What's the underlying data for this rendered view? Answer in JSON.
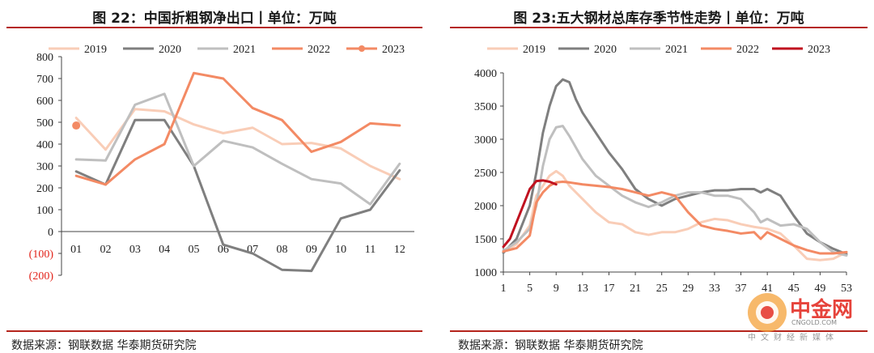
{
  "left": {
    "title": "图 22：中国折粗钢净出口丨单位：万吨",
    "source": "数据来源：钢联数据 华泰期货研究院"
  },
  "right": {
    "title": "图 23:五大钢材总库存季节性走势丨单位：万吨",
    "source": "数据来源：钢联数据 华泰期货研究院"
  },
  "watermark": {
    "cn": "中金网",
    "url": "CNGOLD.COM",
    "sub": "中文财经新媒体"
  },
  "chart_data": [
    {
      "type": "line",
      "title": "图 22：中国折粗钢净出口丨单位：万吨",
      "unit": "万吨",
      "categories": [
        "01",
        "02",
        "03",
        "04",
        "05",
        "06",
        "07",
        "08",
        "09",
        "10",
        "11",
        "12"
      ],
      "ylim": [
        -200,
        800
      ],
      "yticks": [
        -200,
        -100,
        0,
        100,
        200,
        300,
        400,
        500,
        600,
        700,
        800
      ],
      "ytick_labels": [
        "(200)",
        "(100)",
        "0",
        "100",
        "200",
        "300",
        "400",
        "500",
        "600",
        "700",
        "800"
      ],
      "legend_position": "top",
      "series": [
        {
          "name": "2019",
          "color": "#f9cdb7",
          "values": [
            520,
            375,
            560,
            550,
            490,
            450,
            475,
            400,
            405,
            380,
            300,
            240
          ]
        },
        {
          "name": "2020",
          "color": "#7f7f7f",
          "values": [
            275,
            215,
            510,
            510,
            300,
            -60,
            -100,
            -175,
            -180,
            60,
            100,
            280
          ]
        },
        {
          "name": "2021",
          "color": "#bfbfbf",
          "values": [
            330,
            325,
            580,
            630,
            300,
            415,
            385,
            310,
            240,
            220,
            125,
            310
          ]
        },
        {
          "name": "2022",
          "color": "#f38a64",
          "values": [
            255,
            215,
            330,
            400,
            725,
            700,
            565,
            510,
            365,
            410,
            495,
            485
          ]
        },
        {
          "name": "2023",
          "color": "#f38a64",
          "values": [
            485,
            null,
            null,
            null,
            null,
            null,
            null,
            null,
            null,
            null,
            null,
            null
          ],
          "marker": true
        }
      ]
    },
    {
      "type": "line",
      "title": "图 23:五大钢材总库存季节性走势丨单位：万吨",
      "unit": "万吨",
      "xlim": [
        1,
        53
      ],
      "xticks": [
        1,
        5,
        9,
        13,
        17,
        21,
        25,
        29,
        33,
        37,
        41,
        45,
        49,
        53
      ],
      "ylim": [
        1000,
        4000
      ],
      "yticks": [
        1000,
        1500,
        2000,
        2500,
        3000,
        3500,
        4000
      ],
      "legend_position": "top",
      "series": [
        {
          "name": "2019",
          "color": "#f9cdb7",
          "x": [
            1,
            3,
            5,
            6,
            7,
            8,
            9,
            10,
            11,
            13,
            15,
            17,
            19,
            21,
            23,
            25,
            27,
            29,
            31,
            33,
            35,
            37,
            39,
            41,
            43,
            45,
            47,
            49,
            51,
            53
          ],
          "values": [
            1300,
            1420,
            1700,
            2150,
            2300,
            2450,
            2520,
            2450,
            2300,
            2100,
            1900,
            1750,
            1720,
            1600,
            1560,
            1600,
            1600,
            1650,
            1750,
            1800,
            1780,
            1720,
            1680,
            1650,
            1580,
            1400,
            1200,
            1180,
            1200,
            1300
          ]
        },
        {
          "name": "2020",
          "color": "#7f7f7f",
          "x": [
            1,
            3,
            5,
            6,
            7,
            8,
            9,
            10,
            11,
            12,
            13,
            15,
            17,
            19,
            21,
            23,
            25,
            27,
            29,
            31,
            33,
            35,
            37,
            39,
            40,
            41,
            43,
            45,
            47,
            49,
            51,
            53
          ],
          "values": [
            1290,
            1500,
            2000,
            2500,
            3100,
            3500,
            3800,
            3900,
            3860,
            3600,
            3400,
            3100,
            2800,
            2550,
            2250,
            2100,
            2000,
            2100,
            2150,
            2200,
            2230,
            2230,
            2250,
            2250,
            2200,
            2250,
            2150,
            1850,
            1580,
            1450,
            1350,
            1270
          ]
        },
        {
          "name": "2021",
          "color": "#bfbfbf",
          "x": [
            1,
            3,
            5,
            6,
            7,
            8,
            9,
            10,
            11,
            13,
            15,
            17,
            19,
            21,
            23,
            25,
            27,
            29,
            31,
            33,
            35,
            37,
            39,
            40,
            41,
            43,
            45,
            47,
            49,
            51,
            53
          ],
          "values": [
            1320,
            1450,
            1650,
            2000,
            2600,
            3000,
            3180,
            3200,
            3050,
            2700,
            2450,
            2300,
            2150,
            2050,
            1980,
            2050,
            2150,
            2200,
            2200,
            2150,
            2150,
            2100,
            1900,
            1750,
            1800,
            1700,
            1720,
            1650,
            1450,
            1300,
            1250
          ]
        },
        {
          "name": "2022",
          "color": "#f38a64",
          "x": [
            1,
            3,
            5,
            6,
            7,
            8,
            9,
            10,
            11,
            13,
            15,
            17,
            19,
            21,
            23,
            25,
            27,
            29,
            31,
            33,
            35,
            37,
            39,
            40,
            41,
            43,
            45,
            47,
            49,
            51,
            53
          ],
          "values": [
            1310,
            1360,
            1550,
            2050,
            2200,
            2300,
            2350,
            2360,
            2350,
            2320,
            2300,
            2280,
            2250,
            2200,
            2150,
            2200,
            2150,
            1900,
            1700,
            1650,
            1620,
            1580,
            1600,
            1500,
            1600,
            1500,
            1400,
            1330,
            1280,
            1280,
            1300
          ]
        },
        {
          "name": "2023",
          "color": "#c0111f",
          "x": [
            1,
            2,
            3,
            4,
            5,
            6,
            7,
            8,
            9
          ],
          "values": [
            1380,
            1500,
            1750,
            2000,
            2250,
            2370,
            2380,
            2360,
            2320
          ]
        }
      ]
    }
  ]
}
